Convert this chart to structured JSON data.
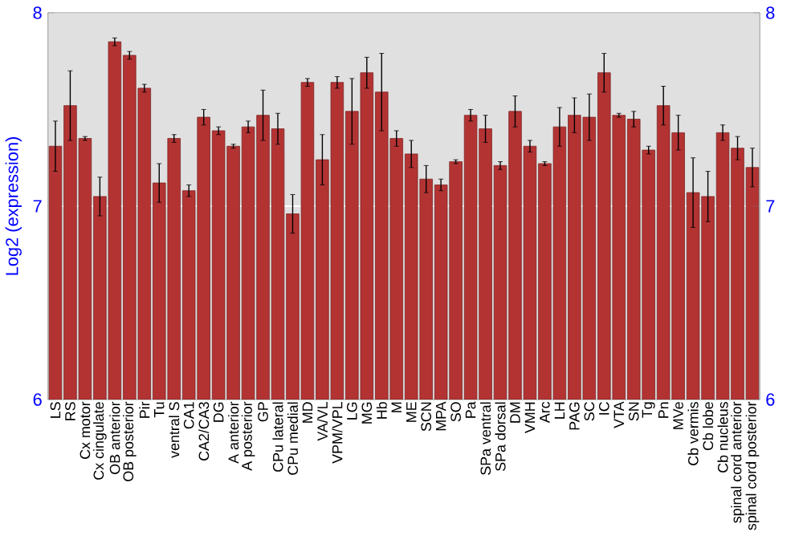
{
  "chart_data": {
    "type": "bar",
    "ylabel": "Log2 (expression)",
    "categories": [
      "LS",
      "RS",
      "Cx motor",
      "Cx cingulate",
      "OB anterior",
      "OB posterior",
      "Pir",
      "Tu",
      "ventral S",
      "CA1",
      "CA2/CA3",
      "DG",
      "A anterior",
      "A posterior",
      "GP",
      "CPu lateral",
      "CPu medial",
      "MD",
      "VA/VL",
      "VPM/VPL",
      "LG",
      "MG",
      "Hb",
      "M",
      "ME",
      "SCN",
      "MPA",
      "SO",
      "Pa",
      "SPa ventral",
      "SPa dorsal",
      "DM",
      "VMH",
      "Arc",
      "LH",
      "PAG",
      "SC",
      "IC",
      "VTA",
      "SN",
      "Tg",
      "Pn",
      "MVe",
      "Cb vermis",
      "Cb lobe",
      "Cb nucleus",
      "spinal cord anterior",
      "spinal cord posterior"
    ],
    "values": [
      7.31,
      7.52,
      7.35,
      7.05,
      7.85,
      7.78,
      7.61,
      7.12,
      7.35,
      7.08,
      7.46,
      7.39,
      7.31,
      7.41,
      7.47,
      7.4,
      6.96,
      7.64,
      7.24,
      7.64,
      7.49,
      7.69,
      7.59,
      7.35,
      7.27,
      7.14,
      7.11,
      7.23,
      7.47,
      7.4,
      7.21,
      7.49,
      7.31,
      7.22,
      7.41,
      7.47,
      7.46,
      7.69,
      7.47,
      7.45,
      7.29,
      7.52,
      7.38,
      7.07,
      7.05,
      7.38,
      7.3,
      7.2
    ],
    "errors": [
      0.13,
      0.18,
      0.01,
      0.1,
      0.02,
      0.02,
      0.02,
      0.1,
      0.02,
      0.03,
      0.04,
      0.02,
      0.01,
      0.03,
      0.13,
      0.08,
      0.1,
      0.02,
      0.13,
      0.03,
      0.17,
      0.08,
      0.2,
      0.04,
      0.07,
      0.07,
      0.03,
      0.01,
      0.03,
      0.07,
      0.02,
      0.08,
      0.03,
      0.01,
      0.1,
      0.09,
      0.12,
      0.1,
      0.01,
      0.04,
      0.02,
      0.1,
      0.09,
      0.18,
      0.13,
      0.04,
      0.06,
      0.1
    ],
    "color": "#b33333",
    "ylim": [
      6,
      8
    ],
    "yticks": [
      6,
      7,
      8
    ],
    "y2lim": [
      6,
      8
    ],
    "y2ticks": [
      6,
      7,
      8
    ],
    "grid": "y"
  }
}
